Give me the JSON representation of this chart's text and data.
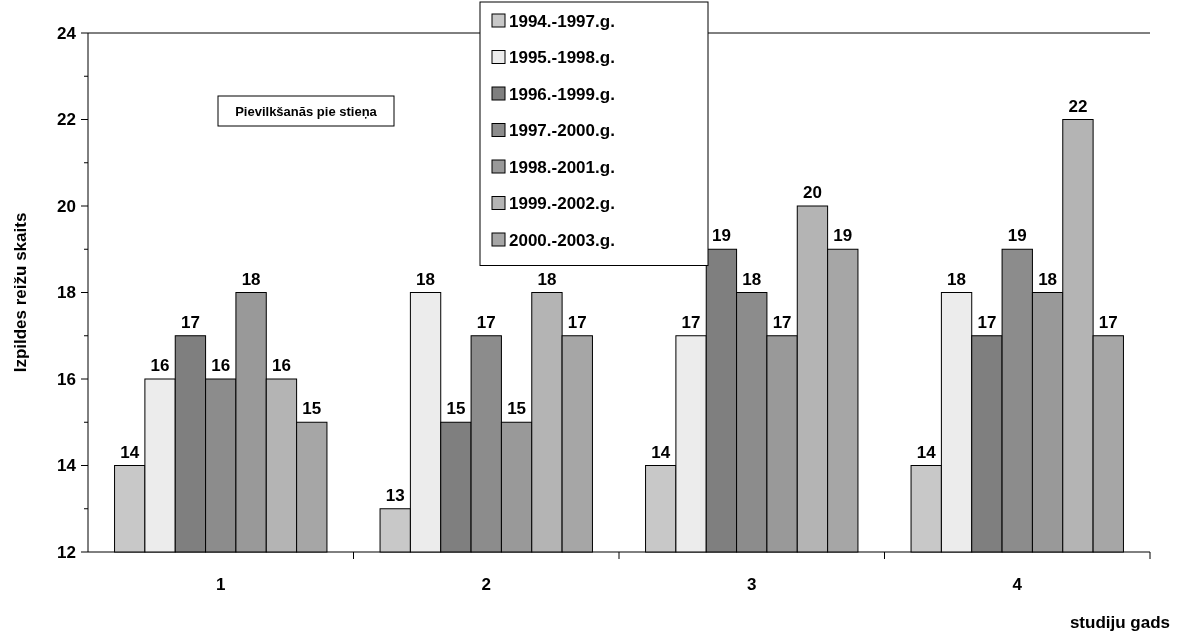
{
  "chart_data": {
    "type": "bar",
    "xlabel": "studiju gads",
    "ylabel": "Izpildes reižu skaits",
    "annotations": [
      "Pievilkšanās pie stieņa"
    ],
    "categories": [
      "1",
      "2",
      "3",
      "4"
    ],
    "series": [
      {
        "name": "1994.-1997.g.",
        "color": "#c8c8c8",
        "values": [
          14,
          13,
          14,
          14
        ]
      },
      {
        "name": "1995.-1998.g.",
        "color": "#ececec",
        "values": [
          16,
          18,
          17,
          18
        ]
      },
      {
        "name": "1996.-1999.g.",
        "color": "#7f7f7f",
        "values": [
          17,
          15,
          19,
          17
        ]
      },
      {
        "name": "1997.-2000.g.",
        "color": "#8c8c8c",
        "values": [
          16,
          17,
          18,
          19
        ]
      },
      {
        "name": "1998.-2001.g.",
        "color": "#999999",
        "values": [
          18,
          15,
          17,
          18
        ]
      },
      {
        "name": "1999.-2002.g.",
        "color": "#b4b4b4",
        "values": [
          16,
          18,
          20,
          22
        ]
      },
      {
        "name": "2000.-2003.g.",
        "color": "#a6a6a6",
        "values": [
          15,
          17,
          19,
          17
        ]
      }
    ],
    "ylim": [
      12,
      24
    ],
    "yticks": [
      12,
      14,
      16,
      18,
      20,
      22,
      24
    ],
    "data_labels": true,
    "legend": "top"
  }
}
